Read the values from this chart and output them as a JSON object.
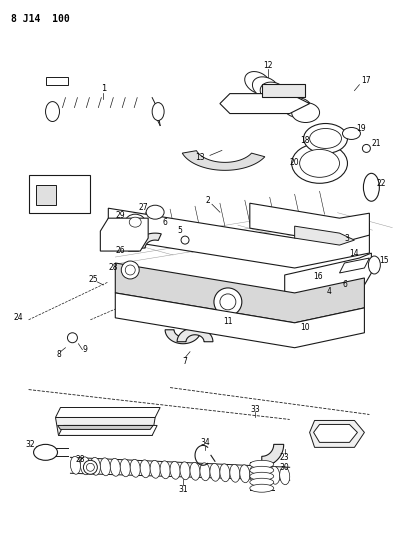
{
  "title_code": "8 J14  100",
  "bg": "#ffffff",
  "lc": "#1a1a1a",
  "figsize": [
    3.94,
    5.33
  ],
  "dpi": 100
}
